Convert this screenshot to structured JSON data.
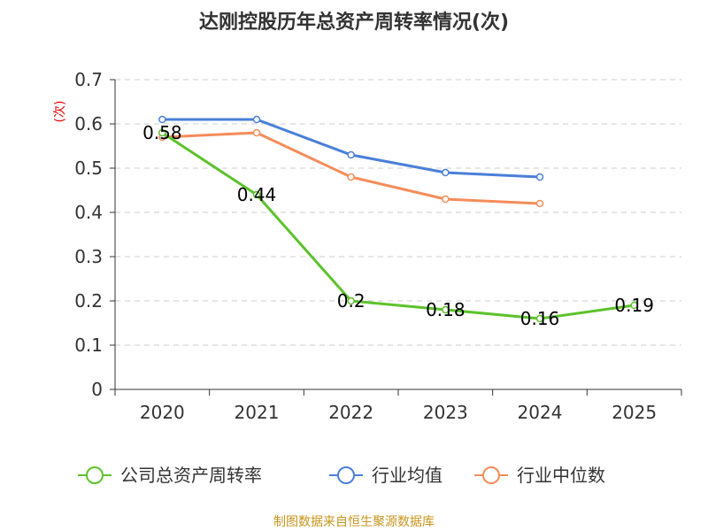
{
  "chart_data": {
    "type": "line",
    "title": "达刚控股历年总资产周转率情况(次)",
    "ylabel": "(次)",
    "xlabel": "",
    "categories": [
      "2020",
      "2021",
      "2022",
      "2023",
      "2024",
      "2025"
    ],
    "ylim": [
      0,
      0.7
    ],
    "yticks": [
      "0",
      "0.1",
      "0.2",
      "0.3",
      "0.4",
      "0.5",
      "0.6",
      "0.7"
    ],
    "grid": true,
    "legend_position": "bottom",
    "series": [
      {
        "name": "公司总资产周转率",
        "color": "#5cc22b",
        "values": [
          0.58,
          0.44,
          0.2,
          0.18,
          0.16,
          0.19
        ],
        "labels": [
          "0.58",
          "0.44",
          "0.2",
          "0.18",
          "0.16",
          "0.19"
        ],
        "show_labels": true
      },
      {
        "name": "行业均值",
        "color": "#4a7fd9",
        "values": [
          0.61,
          0.61,
          0.53,
          0.49,
          0.48,
          null
        ],
        "show_labels": false
      },
      {
        "name": "行业中位数",
        "color": "#f58c5a",
        "values": [
          0.57,
          0.58,
          0.48,
          0.43,
          0.42,
          null
        ],
        "show_labels": false
      }
    ]
  },
  "source": "制图数据来自恒生聚源数据库"
}
